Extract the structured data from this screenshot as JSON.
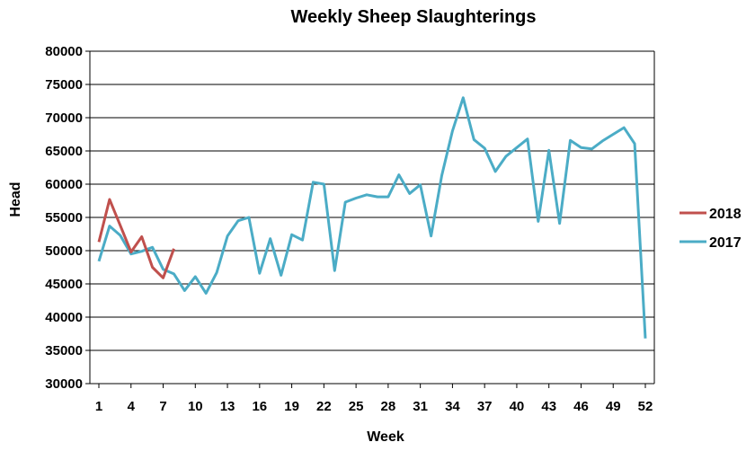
{
  "chart_data": {
    "type": "line",
    "title": "Weekly Sheep Slaughterings",
    "xlabel": "Week",
    "ylabel": "Head",
    "xlim": [
      1,
      52
    ],
    "ylim": [
      30000,
      80000
    ],
    "x_ticks": [
      1,
      4,
      7,
      10,
      13,
      16,
      19,
      22,
      25,
      28,
      31,
      34,
      37,
      40,
      43,
      46,
      49,
      52
    ],
    "y_ticks": [
      30000,
      35000,
      40000,
      45000,
      50000,
      55000,
      60000,
      65000,
      70000,
      75000,
      80000
    ],
    "grid": "horizontal",
    "legend_position": "right",
    "series": [
      {
        "name": "2018",
        "color": "#c0504d",
        "x": [
          1,
          2,
          3,
          4,
          5,
          6,
          7,
          8
        ],
        "values": [
          51300,
          57700,
          53800,
          49800,
          52100,
          47500,
          45900,
          50300
        ]
      },
      {
        "name": "2017",
        "color": "#4bacc6",
        "x": [
          1,
          2,
          3,
          4,
          5,
          6,
          7,
          8,
          9,
          10,
          11,
          12,
          13,
          14,
          15,
          16,
          17,
          18,
          19,
          20,
          21,
          22,
          23,
          24,
          25,
          26,
          27,
          28,
          29,
          30,
          31,
          32,
          33,
          34,
          35,
          36,
          37,
          38,
          39,
          40,
          41,
          42,
          43,
          44,
          45,
          46,
          47,
          48,
          49,
          50,
          51,
          52
        ],
        "values": [
          48400,
          53700,
          52300,
          49500,
          49900,
          50500,
          47200,
          46500,
          44000,
          46100,
          43600,
          46700,
          52200,
          54500,
          55000,
          46600,
          51800,
          46300,
          52400,
          51600,
          60300,
          60000,
          47000,
          57300,
          57900,
          58400,
          58100,
          58100,
          61400,
          58600,
          59900,
          52200,
          61300,
          68000,
          73000,
          66700,
          65400,
          61900,
          64200,
          65500,
          66800,
          54400,
          65100,
          54100,
          66600,
          65500,
          65300,
          66500,
          67500,
          68500,
          66100,
          36800
        ]
      }
    ]
  }
}
